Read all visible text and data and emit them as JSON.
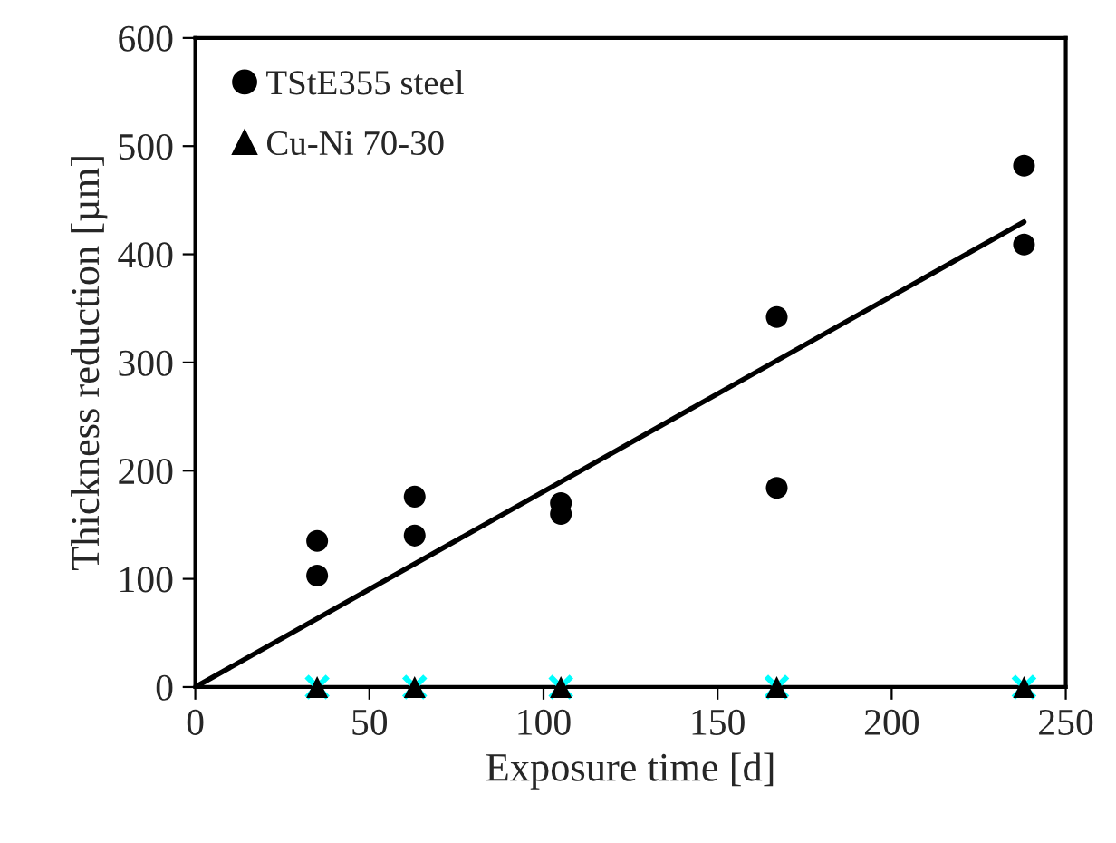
{
  "chart_data": {
    "type": "scatter",
    "xlabel": "Exposure time [d]",
    "ylabel": "Thickness reduction [µm]",
    "xlim": [
      0,
      250
    ],
    "xticks": [
      0,
      50,
      100,
      150,
      200,
      250
    ],
    "ylim": [
      0,
      600
    ],
    "yticks": [
      0,
      100,
      200,
      300,
      400,
      500,
      600
    ],
    "grid": false,
    "legend": "top left",
    "series": [
      {
        "name": "TStE355 steel",
        "color": "#000000",
        "marker": "circle",
        "x": [
          35,
          35,
          63,
          63,
          105,
          105,
          167,
          167,
          238,
          238
        ],
        "values": [
          135,
          103,
          176,
          140,
          170,
          160,
          342,
          184,
          482,
          409
        ]
      },
      {
        "name": "Cu-Ni 70-30",
        "color": "#000000",
        "marker": "triangle",
        "x": [
          35,
          63,
          105,
          167,
          238
        ],
        "values": [
          0,
          0,
          0,
          0,
          0
        ]
      },
      {
        "color": "#00ffff",
        "marker": "cross",
        "x": [
          35,
          63,
          105,
          167,
          238
        ],
        "values": [
          0,
          0,
          0,
          0,
          0
        ]
      },
      {
        "type": "line",
        "color": "#000000",
        "marker": "none",
        "line_style": "solid",
        "x": [
          0,
          238
        ],
        "values": [
          0,
          430
        ]
      }
    ]
  }
}
